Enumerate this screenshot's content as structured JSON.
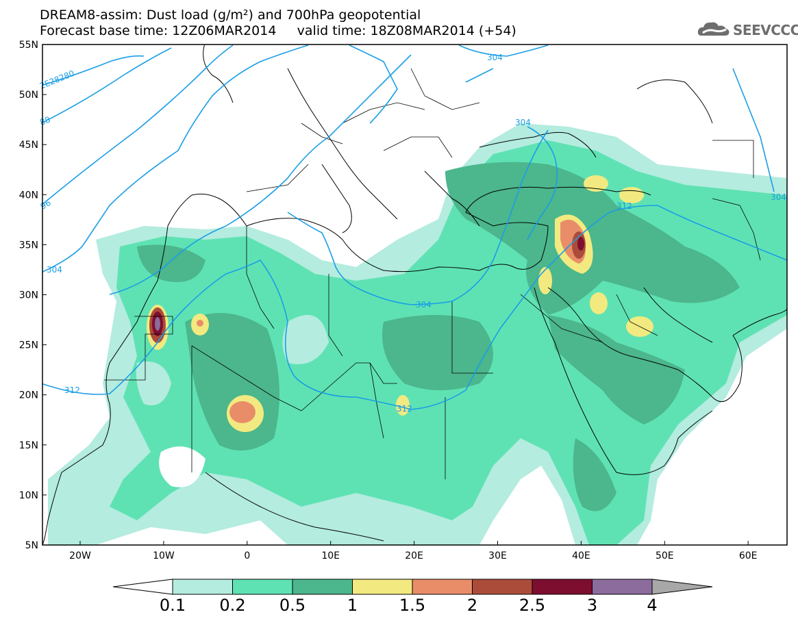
{
  "header": {
    "title_line1": "DREAM8-assim: Dust load (g/m²) and 700hPa geopotential",
    "title_line2": "Forecast base time: 12Z06MAR2014     valid time: 18Z08MAR2014 (+54)",
    "logo_text": "SEEVCCC"
  },
  "map": {
    "lon_labels": [
      "20W",
      "10W",
      "0",
      "10E",
      "20E",
      "30E",
      "40E",
      "50E",
      "60E"
    ],
    "lat_labels": [
      "55N",
      "50N",
      "45N",
      "40N",
      "35N",
      "30N",
      "25N",
      "20N",
      "15N",
      "10N",
      "5N"
    ],
    "contour_labels": [
      "2E28280",
      "88",
      "96",
      "304",
      "312",
      "304",
      "304",
      "304",
      "312",
      "304",
      "304"
    ]
  },
  "colorbar": {
    "labels": [
      "0.1",
      "0.2",
      "0.5",
      "1",
      "1.5",
      "2",
      "2.5",
      "3",
      "4"
    ],
    "colors": [
      "#b4ecdf",
      "#5fe2b3",
      "#4cb68c",
      "#f2ea80",
      "#e98d69",
      "#ab4c3a",
      "#7e0e2f",
      "#8c6b9d",
      "#a8a8a8"
    ]
  }
}
